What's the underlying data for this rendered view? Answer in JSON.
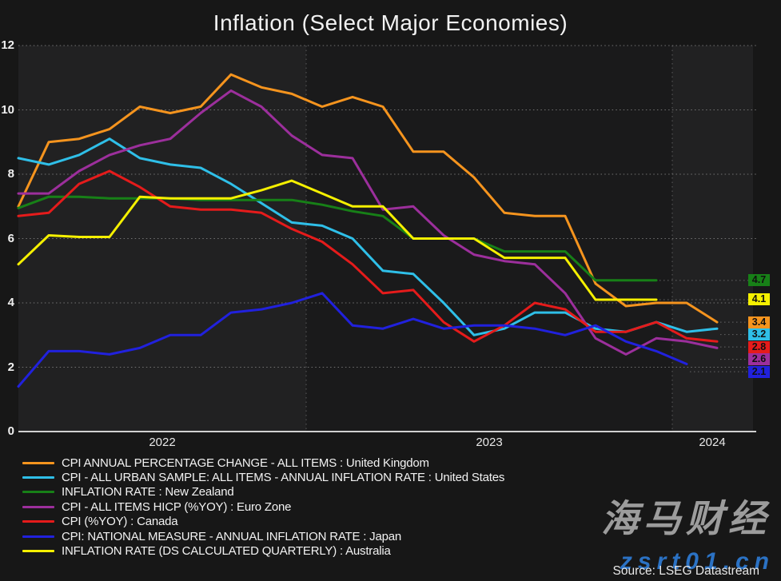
{
  "title": "Inflation (Select Major Economies)",
  "source_credit": "Source: LSEG Datastream",
  "watermark": {
    "brand": "海马财经",
    "site": "zsrt01.cn"
  },
  "colors": {
    "background": "#171717",
    "band_light": "#212122",
    "band_dark": "#1a1a1b",
    "grid": "#909090",
    "axis": "#d0d0d0",
    "text": "#f0f0f0"
  },
  "chart_data": {
    "type": "line",
    "title": "Inflation (Select Major Economies)",
    "xlabel": "",
    "ylabel": "",
    "ylim": [
      0,
      12
    ],
    "yticks": [
      0,
      2,
      4,
      6,
      8,
      10,
      12
    ],
    "xticks": [
      "2022",
      "2023",
      "2024"
    ],
    "year_boundaries": [
      "Jan 2023",
      "Jan 2024"
    ],
    "grid": "dotted",
    "legend_position": "bottom-left",
    "x": [
      "Mar 2022",
      "Apr 2022",
      "May 2022",
      "Jun 2022",
      "Jul 2022",
      "Aug 2022",
      "Sep 2022",
      "Oct 2022",
      "Nov 2022",
      "Dec 2022",
      "Jan 2023",
      "Feb 2023",
      "Mar 2023",
      "Apr 2023",
      "May 2023",
      "Jun 2023",
      "Jul 2023",
      "Aug 2023",
      "Sep 2023",
      "Oct 2023",
      "Nov 2023",
      "Dec 2023",
      "Jan 2024",
      "Feb 2024"
    ],
    "series": [
      {
        "name": "CPI ANNUAL PERCENTAGE CHANGE - ALL ITEMS : United Kingdom",
        "color": "#f5941e",
        "end_label": "3.4",
        "values": [
          7.0,
          9.0,
          9.1,
          9.4,
          10.1,
          9.9,
          10.1,
          11.1,
          10.7,
          10.5,
          10.1,
          10.4,
          10.1,
          8.7,
          8.7,
          7.9,
          6.8,
          6.7,
          6.7,
          4.6,
          3.9,
          4.0,
          4.0,
          3.4
        ]
      },
      {
        "name": "CPI - ALL URBAN SAMPLE: ALL ITEMS - ANNUAL INFLATION RATE : United States",
        "color": "#2fbfe8",
        "end_label": "3.2",
        "values": [
          8.5,
          8.3,
          8.6,
          9.1,
          8.5,
          8.3,
          8.2,
          7.7,
          7.1,
          6.5,
          6.4,
          6.0,
          5.0,
          4.9,
          4.0,
          3.0,
          3.2,
          3.7,
          3.7,
          3.2,
          3.1,
          3.4,
          3.1,
          3.2
        ]
      },
      {
        "name": "INFLATION RATE : New Zealand",
        "color": "#178017",
        "end_label": "4.7",
        "values": [
          6.95,
          7.3,
          7.3,
          7.25,
          7.25,
          7.25,
          7.2,
          7.2,
          7.2,
          7.2,
          7.05,
          6.85,
          6.7,
          6.0,
          6.0,
          6.0,
          5.6,
          5.6,
          5.6,
          4.7,
          4.7,
          4.7
        ]
      },
      {
        "name": "CPI - ALL ITEMS HICP (%YOY) : Euro Zone",
        "color": "#9c2f9c",
        "end_label": "2.6",
        "values": [
          7.4,
          7.4,
          8.1,
          8.6,
          8.9,
          9.1,
          9.9,
          10.6,
          10.1,
          9.2,
          8.6,
          8.5,
          6.9,
          7.0,
          6.1,
          5.5,
          5.3,
          5.2,
          4.3,
          2.9,
          2.4,
          2.9,
          2.8,
          2.6
        ]
      },
      {
        "name": "CPI (%YOY) : Canada",
        "color": "#e51b1b",
        "end_label": "2.8",
        "values": [
          6.7,
          6.8,
          7.7,
          8.1,
          7.6,
          7.0,
          6.9,
          6.9,
          6.8,
          6.3,
          5.9,
          5.2,
          4.3,
          4.4,
          3.4,
          2.8,
          3.3,
          4.0,
          3.8,
          3.1,
          3.1,
          3.4,
          2.9,
          2.8
        ]
      },
      {
        "name": "CPI: NATIONAL MEASURE - ANNUAL INFLATION RATE : Japan",
        "color": "#2121dd",
        "end_label": "2.1",
        "values": [
          1.4,
          2.5,
          2.5,
          2.4,
          2.6,
          3.0,
          3.0,
          3.7,
          3.8,
          4.0,
          4.3,
          3.3,
          3.2,
          3.5,
          3.2,
          3.3,
          3.3,
          3.2,
          3.0,
          3.3,
          2.8,
          2.5,
          2.1
        ]
      },
      {
        "name": "INFLATION RATE (DS CALCULATED QUARTERLY) : Australia",
        "color": "#f5f000",
        "end_label": "4.1",
        "values": [
          5.2,
          6.1,
          6.05,
          6.05,
          7.3,
          7.25,
          7.25,
          7.25,
          7.5,
          7.8,
          7.4,
          7.0,
          7.0,
          6.0,
          6.0,
          6.0,
          5.4,
          5.4,
          5.4,
          4.1,
          4.1,
          4.1
        ]
      }
    ]
  }
}
